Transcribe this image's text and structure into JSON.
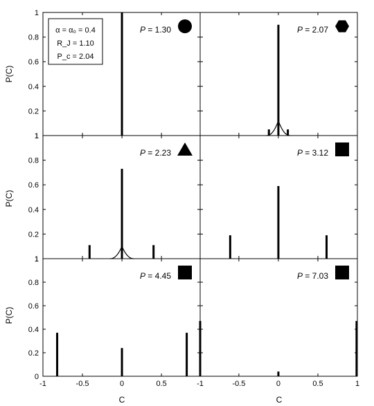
{
  "chart_data": {
    "type": "bar",
    "xlabel": "C",
    "ylabel": "P(C)",
    "ylim": [
      0,
      1
    ],
    "yticks": [
      "0",
      "0.2",
      "0.4",
      "0.6",
      "0.8",
      "1"
    ],
    "xlim_left": [
      -1,
      0.99
    ],
    "xlim_right": [
      -0.99,
      1
    ],
    "xticks_left": [
      "-1",
      "-0.5",
      "0",
      "0.5",
      "1"
    ],
    "xticks_right": [
      "-1",
      "-0.5",
      "0",
      "0.5",
      "1"
    ],
    "legend": {
      "line1": "α = α₀ = 0.4",
      "line2": "R_J = 1.10",
      "line3": "P_c = 2.04"
    },
    "panels": [
      {
        "p_label": "P = 1.30",
        "marker": "circle",
        "bars": [
          {
            "x": 0,
            "y": 1.0
          }
        ],
        "curve": null
      },
      {
        "p_label": "P = 2.07",
        "marker": "hexagon",
        "bars": [
          {
            "x": -0.12,
            "y": 0.05
          },
          {
            "x": 0,
            "y": 0.9
          },
          {
            "x": 0.12,
            "y": 0.05
          }
        ],
        "curve": {
          "peak": 0.12,
          "width": 0.15
        }
      },
      {
        "p_label": "P = 2.23",
        "marker": "triangle",
        "bars": [
          {
            "x": -0.41,
            "y": 0.11
          },
          {
            "x": 0,
            "y": 0.73
          },
          {
            "x": 0.4,
            "y": 0.11
          }
        ],
        "curve": {
          "peak": 0.1,
          "width": 0.15
        }
      },
      {
        "p_label": "P = 3.12",
        "marker": "square",
        "bars": [
          {
            "x": -0.61,
            "y": 0.19
          },
          {
            "x": 0,
            "y": 0.59
          },
          {
            "x": 0.61,
            "y": 0.19
          }
        ],
        "curve": null
      },
      {
        "p_label": "P = 4.45",
        "marker": "square",
        "bars": [
          {
            "x": -0.82,
            "y": 0.37
          },
          {
            "x": 0,
            "y": 0.24
          },
          {
            "x": 0.82,
            "y": 0.37
          }
        ],
        "curve": null
      },
      {
        "p_label": "P = 7.03",
        "marker": "square",
        "bars": [
          {
            "x": -0.99,
            "y": 0.47
          },
          {
            "x": 0,
            "y": 0.04
          },
          {
            "x": 0.99,
            "y": 0.47
          }
        ],
        "curve": null
      }
    ]
  }
}
